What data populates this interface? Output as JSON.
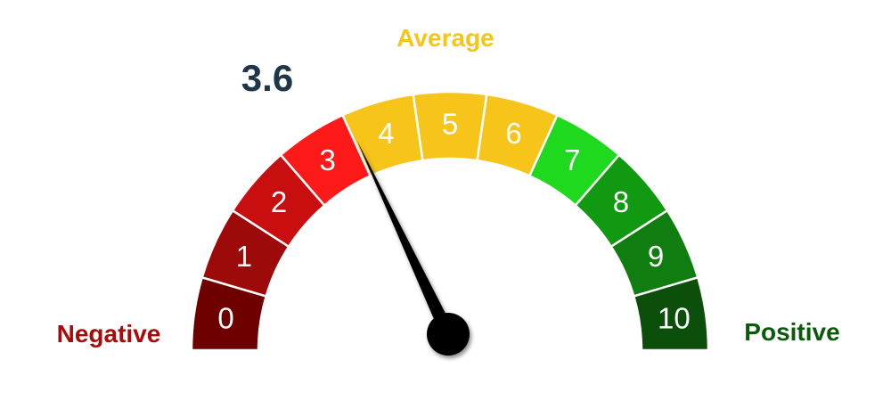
{
  "chart_data": {
    "type": "gauge",
    "min": 0,
    "max": 10,
    "value": 3.6,
    "value_label": "3.6",
    "segments": [
      {
        "label": "0",
        "value": 0,
        "color": "#6e0000"
      },
      {
        "label": "1",
        "value": 1,
        "color": "#9c0a0a"
      },
      {
        "label": "2",
        "value": 2,
        "color": "#c80e0e"
      },
      {
        "label": "3",
        "value": 3,
        "color": "#ff1a1a"
      },
      {
        "label": "4",
        "value": 4,
        "color": "#f7c41a"
      },
      {
        "label": "5",
        "value": 5,
        "color": "#f7c41a"
      },
      {
        "label": "6",
        "value": 6,
        "color": "#f7c41a"
      },
      {
        "label": "7",
        "value": 7,
        "color": "#1ed91e"
      },
      {
        "label": "8",
        "value": 8,
        "color": "#119911"
      },
      {
        "label": "9",
        "value": 9,
        "color": "#0f7d0f"
      },
      {
        "label": "10",
        "value": 10,
        "color": "#0b4f0b"
      }
    ],
    "zones": {
      "negative": {
        "label": "Negative",
        "color": "#aa0a0a"
      },
      "average": {
        "label": "Average",
        "color": "#f7c41a"
      },
      "positive": {
        "label": "Positive",
        "color": "#0b5a0b"
      }
    },
    "value_color": "#1e3649",
    "needle_color": "#000000"
  }
}
